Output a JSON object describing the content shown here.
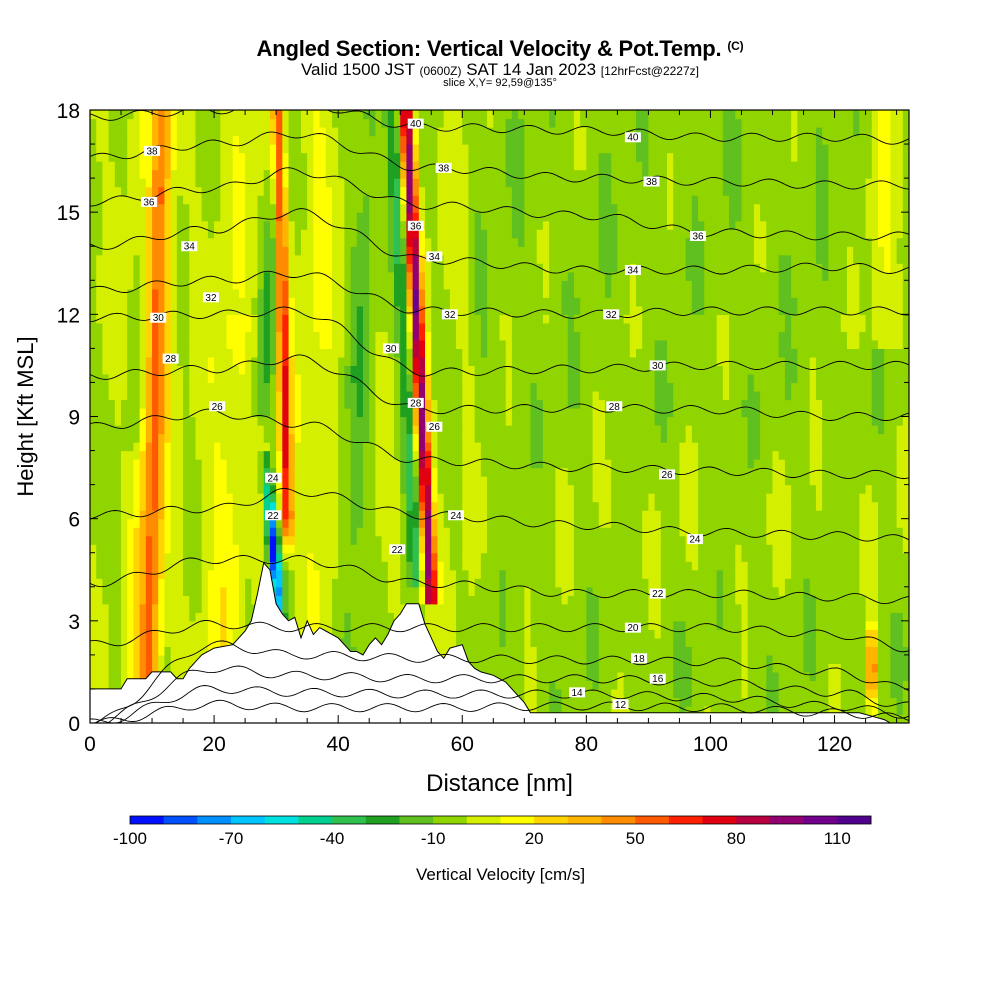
{
  "header": {
    "title": "Angled Section: Vertical Velocity & Pot.Temp.",
    "title_suffix": "(C)",
    "valid_prefix": "Valid 1500 JST",
    "valid_zulu": "(0600Z)",
    "valid_date": "SAT 14 Jan 2023",
    "forecast": "[12hrFcst@2227z]",
    "slice": "slice X,Y= 92,59@135°"
  },
  "chart_data": {
    "type": "heatmap",
    "xlabel": "Distance [nm]",
    "ylabel": "Height [Kft MSL]",
    "xlim": [
      0,
      132
    ],
    "ylim": [
      0,
      18
    ],
    "x_ticks": [
      "0",
      "20",
      "40",
      "60",
      "80",
      "100",
      "120"
    ],
    "y_ticks": [
      "0",
      "3",
      "6",
      "9",
      "12",
      "15",
      "18"
    ],
    "colorbar": {
      "label": "Vertical Velocity [cm/s]",
      "min": -100,
      "max": 120,
      "step": 10,
      "tick_labels": [
        "-100",
        "-70",
        "-40",
        "-10",
        "20",
        "50",
        "80",
        "110"
      ],
      "colors": [
        "#0010ff",
        "#0050ff",
        "#0090ff",
        "#00c4ff",
        "#00e0e0",
        "#00d090",
        "#30c050",
        "#20a020",
        "#60c020",
        "#90d400",
        "#d4f000",
        "#ffff00",
        "#ffd400",
        "#ffb400",
        "#ff8c00",
        "#ff5a00",
        "#ff2000",
        "#e00010",
        "#b80040",
        "#900070",
        "#70008c",
        "#50008c"
      ]
    },
    "velocity_features": [
      {
        "type": "updraft",
        "x": 54,
        "z_range": [
          3.5,
          18
        ],
        "max_cms": 90
      },
      {
        "type": "updraft",
        "x": 31.5,
        "z_range": [
          4.5,
          18
        ],
        "max_cms": 70
      },
      {
        "type": "downdraft",
        "x": 29,
        "z_range": [
          2.8,
          7.5
        ],
        "min_cms": -80
      },
      {
        "type": "updraft",
        "x": 11,
        "z_range": [
          1,
          18
        ],
        "max_cms": 40
      },
      {
        "type": "updraft",
        "x": 126,
        "z_range": [
          0.5,
          3
        ],
        "max_cms": 60
      }
    ],
    "isentropes": [
      {
        "theta": 12,
        "heights": [
          0,
          0.55,
          0.45,
          0.45,
          0.5,
          0.45,
          0.3,
          0.15
        ]
      },
      {
        "theta": 14,
        "heights": [
          0,
          1.0,
          0.9,
          0.85,
          0.85,
          0.75,
          0.5,
          0.25
        ]
      },
      {
        "theta": 16,
        "heights": [
          0,
          1.6,
          1.4,
          1.3,
          1.3,
          1.2,
          0.9,
          0.5
        ]
      },
      {
        "theta": 18,
        "heights": [
          0,
          2.3,
          2.0,
          1.9,
          1.85,
          1.8,
          1.5,
          1.0
        ]
      },
      {
        "theta": 20,
        "heights": [
          2.3,
          2.9,
          2.8,
          2.8,
          2.8,
          2.8,
          2.6,
          2.2
        ]
      },
      {
        "theta": 22,
        "heights": [
          4.1,
          4.8,
          4.8,
          4.1,
          3.8,
          3.8,
          3.7,
          3.6
        ]
      },
      {
        "theta": 24,
        "heights": [
          6.1,
          6.3,
          6.8,
          6.1,
          5.8,
          5.6,
          5.5,
          5.4
        ]
      },
      {
        "theta": 26,
        "heights": [
          8.7,
          9.1,
          8.8,
          7.7,
          7.5,
          7.4,
          7.3,
          7.3
        ]
      },
      {
        "theta": 28,
        "heights": [
          10.2,
          10.4,
          10.7,
          9.2,
          9.25,
          9.2,
          9.0,
          9.0
        ]
      },
      {
        "theta": 30,
        "heights": [
          11.9,
          12.0,
          12.1,
          10.3,
          10.4,
          10.5,
          10.5,
          10.5
        ]
      },
      {
        "theta": 32,
        "heights": [
          12.7,
          13.0,
          13.2,
          12.1,
          12.0,
          12.1,
          12.1,
          12.1
        ]
      },
      {
        "theta": 34,
        "heights": [
          14.0,
          14.5,
          15.0,
          13.6,
          13.3,
          13.3,
          13.4,
          13.3
        ]
      },
      {
        "theta": 36,
        "heights": [
          15.3,
          15.7,
          16.2,
          15.2,
          14.9,
          14.4,
          14.3,
          14.3
        ]
      },
      {
        "theta": 38,
        "heights": [
          16.6,
          17.0,
          17.3,
          16.3,
          16.0,
          15.9,
          15.8,
          15.8
        ]
      },
      {
        "theta": 40,
        "heights": [
          17.8,
          18.0,
          18.2,
          17.5,
          17.4,
          17.2,
          17.2,
          17.1
        ]
      }
    ],
    "isentrope_x": [
      0,
      20,
      33,
      54,
      80,
      100,
      120,
      132
    ],
    "contour_labels": [
      {
        "text": "38",
        "x": 10,
        "z": 16.8
      },
      {
        "text": "36",
        "x": 9.5,
        "z": 15.3
      },
      {
        "text": "34",
        "x": 16,
        "z": 14.0
      },
      {
        "text": "32",
        "x": 19.5,
        "z": 12.5
      },
      {
        "text": "30",
        "x": 11,
        "z": 11.9
      },
      {
        "text": "28",
        "x": 13,
        "z": 10.7
      },
      {
        "text": "26",
        "x": 20.5,
        "z": 9.3
      },
      {
        "text": "24",
        "x": 29.5,
        "z": 7.2
      },
      {
        "text": "22",
        "x": 29.5,
        "z": 6.1
      },
      {
        "text": "40",
        "x": 52.5,
        "z": 17.6
      },
      {
        "text": "38",
        "x": 57,
        "z": 16.3
      },
      {
        "text": "36",
        "x": 52.5,
        "z": 14.6
      },
      {
        "text": "34",
        "x": 55.5,
        "z": 13.7
      },
      {
        "text": "32",
        "x": 58,
        "z": 12.0
      },
      {
        "text": "30",
        "x": 48.5,
        "z": 11.0
      },
      {
        "text": "28",
        "x": 52.5,
        "z": 9.4
      },
      {
        "text": "26",
        "x": 55.5,
        "z": 8.7
      },
      {
        "text": "24",
        "x": 59,
        "z": 6.1
      },
      {
        "text": "22",
        "x": 49.5,
        "z": 5.1
      },
      {
        "text": "40",
        "x": 87.5,
        "z": 17.2
      },
      {
        "text": "38",
        "x": 90.5,
        "z": 15.9
      },
      {
        "text": "36",
        "x": 98,
        "z": 14.3
      },
      {
        "text": "34",
        "x": 87.5,
        "z": 13.3
      },
      {
        "text": "32",
        "x": 84,
        "z": 12.0
      },
      {
        "text": "30",
        "x": 91.5,
        "z": 10.5
      },
      {
        "text": "28",
        "x": 84.5,
        "z": 9.3
      },
      {
        "text": "26",
        "x": 93,
        "z": 7.3
      },
      {
        "text": "24",
        "x": 97.5,
        "z": 5.4
      },
      {
        "text": "22",
        "x": 91.5,
        "z": 3.8
      },
      {
        "text": "20",
        "x": 87.5,
        "z": 2.8
      },
      {
        "text": "18",
        "x": 88.5,
        "z": 1.9
      },
      {
        "text": "16",
        "x": 91.5,
        "z": 1.3
      },
      {
        "text": "14",
        "x": 78.5,
        "z": 0.9
      },
      {
        "text": "12",
        "x": 85.5,
        "z": 0.55
      }
    ],
    "terrain": [
      [
        0,
        1
      ],
      [
        5,
        1
      ],
      [
        6,
        1.3
      ],
      [
        9,
        1.3
      ],
      [
        10,
        1.5
      ],
      [
        13,
        1.5
      ],
      [
        14,
        1.3
      ],
      [
        15,
        1.3
      ],
      [
        16,
        1.6
      ],
      [
        17,
        1.8
      ],
      [
        18,
        2
      ],
      [
        20,
        2.2
      ],
      [
        23,
        2.3
      ],
      [
        25,
        2.7
      ],
      [
        26,
        3
      ],
      [
        27,
        3.8
      ],
      [
        28,
        4.7
      ],
      [
        29,
        4.5
      ],
      [
        30,
        3.5
      ],
      [
        31,
        3.2
      ],
      [
        32,
        3
      ],
      [
        33,
        3.1
      ],
      [
        34,
        2.5
      ],
      [
        35,
        3
      ],
      [
        36,
        2.6
      ],
      [
        37,
        2.8
      ],
      [
        38,
        2.7
      ],
      [
        40,
        2.5
      ],
      [
        42,
        2.1
      ],
      [
        43,
        2.1
      ],
      [
        44,
        2
      ],
      [
        45,
        2.3
      ],
      [
        46,
        2.5
      ],
      [
        47,
        2.3
      ],
      [
        48,
        2.6
      ],
      [
        49,
        3
      ],
      [
        50,
        3.2
      ],
      [
        51,
        3.5
      ],
      [
        53,
        3.5
      ],
      [
        54,
        2.9
      ],
      [
        55,
        2.5
      ],
      [
        56,
        2.1
      ],
      [
        57,
        1.9
      ],
      [
        58,
        2.2
      ],
      [
        60,
        2.3
      ],
      [
        61,
        1.8
      ],
      [
        62,
        1.6
      ],
      [
        63,
        1.5
      ],
      [
        65,
        1.4
      ],
      [
        67,
        1.2
      ],
      [
        68,
        1
      ],
      [
        69,
        0.8
      ],
      [
        70,
        0.6
      ],
      [
        71,
        0.3
      ],
      [
        72,
        0.3
      ],
      [
        80,
        0.3
      ],
      [
        100,
        0.3
      ],
      [
        120,
        0.3
      ],
      [
        124,
        0.3
      ],
      [
        126,
        0.2
      ],
      [
        128,
        0.1
      ],
      [
        129,
        0
      ],
      [
        132,
        0
      ]
    ]
  }
}
